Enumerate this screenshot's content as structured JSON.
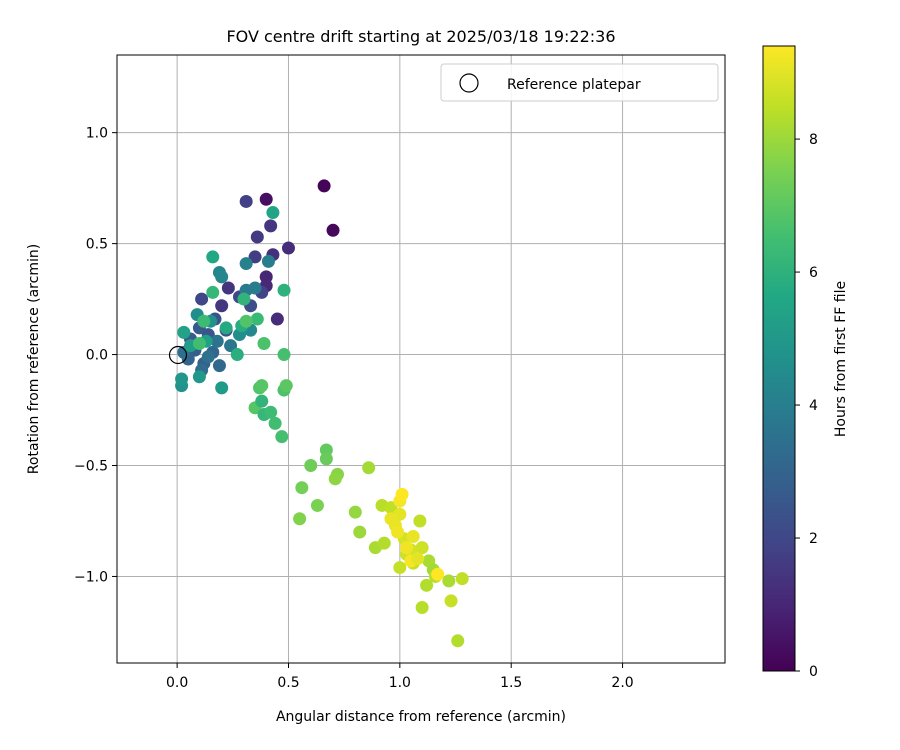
{
  "chart_data": {
    "type": "scatter",
    "title": "FOV centre drift starting at 2025/03/18 19:22:36",
    "xlabel": "Angular distance from reference (arcmin)",
    "ylabel": "Rotation from reference (arcmin)",
    "xlim": [
      -0.27,
      2.46
    ],
    "ylim": [
      -1.39,
      1.35
    ],
    "xticks": [
      0.0,
      0.5,
      1.0,
      1.5,
      2.0
    ],
    "xtick_labels": [
      "0.0",
      "0.5",
      "1.0",
      "1.5",
      "2.0"
    ],
    "yticks": [
      -1.0,
      -0.5,
      0.0,
      0.5,
      1.0
    ],
    "ytick_labels": [
      "−1.0",
      "−0.5",
      "0.0",
      "0.5",
      "1.0"
    ],
    "grid": true,
    "legend": {
      "placement": "top-right",
      "entries": [
        "Reference platepar"
      ]
    },
    "reference_point": {
      "x": 0.0,
      "y": 0.0,
      "style": "open-circle"
    },
    "colorbar": {
      "label": "Hours from first FF file",
      "range": [
        0,
        9.4
      ],
      "ticks": [
        0,
        2,
        4,
        6,
        8
      ],
      "tick_labels": [
        "0",
        "2",
        "4",
        "6",
        "8"
      ],
      "colormap": "viridis"
    },
    "points": [
      {
        "x": 0.66,
        "y": 0.76,
        "h": 0.1
      },
      {
        "x": 0.7,
        "y": 0.56,
        "h": 0.2
      },
      {
        "x": 0.4,
        "y": 0.7,
        "h": 0.4
      },
      {
        "x": 0.5,
        "y": 0.48,
        "h": 1.2
      },
      {
        "x": 0.43,
        "y": 0.45,
        "h": 1.3
      },
      {
        "x": 0.4,
        "y": 0.35,
        "h": 1.0
      },
      {
        "x": 0.42,
        "y": 0.58,
        "h": 1.5
      },
      {
        "x": 0.36,
        "y": 0.53,
        "h": 1.6
      },
      {
        "x": 0.31,
        "y": 0.69,
        "h": 1.8
      },
      {
        "x": 0.4,
        "y": 0.31,
        "h": 1.1
      },
      {
        "x": 0.45,
        "y": 0.16,
        "h": 1.2
      },
      {
        "x": 0.23,
        "y": 0.3,
        "h": 1.4
      },
      {
        "x": 0.35,
        "y": 0.44,
        "h": 1.7
      },
      {
        "x": 0.38,
        "y": 0.28,
        "h": 1.9
      },
      {
        "x": 0.2,
        "y": 0.22,
        "h": 1.5
      },
      {
        "x": 0.11,
        "y": 0.25,
        "h": 2.0
      },
      {
        "x": 0.28,
        "y": 0.26,
        "h": 2.1
      },
      {
        "x": 0.33,
        "y": 0.22,
        "h": 2.2
      },
      {
        "x": 0.22,
        "y": 0.11,
        "h": 2.3
      },
      {
        "x": 0.17,
        "y": 0.16,
        "h": 2.4
      },
      {
        "x": 0.14,
        "y": 0.09,
        "h": 2.5
      },
      {
        "x": 0.1,
        "y": 0.12,
        "h": 2.6
      },
      {
        "x": 0.06,
        "y": 0.07,
        "h": 2.7
      },
      {
        "x": 0.08,
        "y": 0.02,
        "h": 2.8
      },
      {
        "x": 0.12,
        "y": -0.04,
        "h": 2.9
      },
      {
        "x": 0.05,
        "y": -0.02,
        "h": 3.0
      },
      {
        "x": 0.16,
        "y": 0.01,
        "h": 3.1
      },
      {
        "x": 0.19,
        "y": -0.05,
        "h": 3.2
      },
      {
        "x": 0.11,
        "y": -0.07,
        "h": 3.3
      },
      {
        "x": 0.03,
        "y": 0.01,
        "h": 3.4
      },
      {
        "x": 0.14,
        "y": -0.01,
        "h": 3.5
      },
      {
        "x": 0.18,
        "y": 0.06,
        "h": 3.6
      },
      {
        "x": 0.24,
        "y": 0.04,
        "h": 3.7
      },
      {
        "x": 0.31,
        "y": 0.29,
        "h": 3.8
      },
      {
        "x": 0.35,
        "y": 0.3,
        "h": 3.9
      },
      {
        "x": 0.41,
        "y": 0.42,
        "h": 4.0
      },
      {
        "x": 0.31,
        "y": 0.41,
        "h": 4.1
      },
      {
        "x": 0.19,
        "y": 0.37,
        "h": 4.2
      },
      {
        "x": 0.2,
        "y": 0.35,
        "h": 4.3
      },
      {
        "x": 0.33,
        "y": 0.11,
        "h": 4.4
      },
      {
        "x": 0.28,
        "y": 0.09,
        "h": 4.5
      },
      {
        "x": 0.09,
        "y": 0.18,
        "h": 4.6
      },
      {
        "x": 0.15,
        "y": 0.15,
        "h": 4.7
      },
      {
        "x": 0.02,
        "y": -0.14,
        "h": 4.8
      },
      {
        "x": 0.02,
        "y": -0.11,
        "h": 4.9
      },
      {
        "x": 0.1,
        "y": -0.1,
        "h": 5.0
      },
      {
        "x": 0.2,
        "y": -0.15,
        "h": 5.1
      },
      {
        "x": 0.06,
        "y": 0.04,
        "h": 5.2
      },
      {
        "x": 0.13,
        "y": 0.06,
        "h": 5.3
      },
      {
        "x": 0.03,
        "y": 0.1,
        "h": 5.4
      },
      {
        "x": 0.43,
        "y": 0.64,
        "h": 5.5
      },
      {
        "x": 0.16,
        "y": 0.44,
        "h": 5.6
      },
      {
        "x": 0.22,
        "y": 0.12,
        "h": 5.7
      },
      {
        "x": 0.29,
        "y": 0.13,
        "h": 5.8
      },
      {
        "x": 0.27,
        "y": 0.0,
        "h": 5.9
      },
      {
        "x": 0.48,
        "y": 0.29,
        "h": 6.0
      },
      {
        "x": 0.3,
        "y": 0.25,
        "h": 6.1
      },
      {
        "x": 0.16,
        "y": 0.28,
        "h": 6.2
      },
      {
        "x": 0.36,
        "y": 0.16,
        "h": 6.3
      },
      {
        "x": 0.12,
        "y": 0.15,
        "h": 6.4
      },
      {
        "x": 0.1,
        "y": 0.05,
        "h": 6.5
      },
      {
        "x": 0.48,
        "y": 0.0,
        "h": 6.6
      },
      {
        "x": 0.39,
        "y": 0.05,
        "h": 6.7
      },
      {
        "x": 0.31,
        "y": 0.15,
        "h": 6.8
      },
      {
        "x": 0.35,
        "y": -0.24,
        "h": 6.9
      },
      {
        "x": 0.38,
        "y": -0.21,
        "h": 6.1
      },
      {
        "x": 0.39,
        "y": -0.27,
        "h": 6.2
      },
      {
        "x": 0.42,
        "y": -0.26,
        "h": 6.4
      },
      {
        "x": 0.44,
        "y": -0.31,
        "h": 6.5
      },
      {
        "x": 0.47,
        "y": -0.37,
        "h": 6.6
      },
      {
        "x": 0.48,
        "y": -0.16,
        "h": 6.7
      },
      {
        "x": 0.37,
        "y": -0.15,
        "h": 6.8
      },
      {
        "x": 0.38,
        "y": -0.14,
        "h": 6.9
      },
      {
        "x": 0.49,
        "y": -0.14,
        "h": 7.0
      },
      {
        "x": 0.67,
        "y": -0.43,
        "h": 7.1
      },
      {
        "x": 0.67,
        "y": -0.47,
        "h": 7.2
      },
      {
        "x": 0.6,
        "y": -0.5,
        "h": 7.3
      },
      {
        "x": 0.56,
        "y": -0.6,
        "h": 7.4
      },
      {
        "x": 0.63,
        "y": -0.68,
        "h": 7.5
      },
      {
        "x": 0.55,
        "y": -0.74,
        "h": 7.6
      },
      {
        "x": 0.72,
        "y": -0.54,
        "h": 7.7
      },
      {
        "x": 0.71,
        "y": -0.56,
        "h": 7.8
      },
      {
        "x": 0.8,
        "y": -0.71,
        "h": 7.9
      },
      {
        "x": 0.82,
        "y": -0.8,
        "h": 8.0
      },
      {
        "x": 0.86,
        "y": -0.51,
        "h": 8.1
      },
      {
        "x": 0.89,
        "y": -0.87,
        "h": 8.2
      },
      {
        "x": 0.93,
        "y": -0.85,
        "h": 8.3
      },
      {
        "x": 0.92,
        "y": -0.68,
        "h": 8.4
      },
      {
        "x": 0.96,
        "y": -0.69,
        "h": 8.5
      },
      {
        "x": 1.0,
        "y": -0.96,
        "h": 8.6
      },
      {
        "x": 1.03,
        "y": -0.9,
        "h": 8.7
      },
      {
        "x": 1.05,
        "y": -0.88,
        "h": 8.8
      },
      {
        "x": 1.06,
        "y": -0.94,
        "h": 8.6
      },
      {
        "x": 1.09,
        "y": -0.75,
        "h": 8.5
      },
      {
        "x": 1.1,
        "y": -0.87,
        "h": 8.7
      },
      {
        "x": 1.1,
        "y": -1.14,
        "h": 8.4
      },
      {
        "x": 1.12,
        "y": -1.04,
        "h": 8.3
      },
      {
        "x": 1.13,
        "y": -0.93,
        "h": 8.2
      },
      {
        "x": 1.15,
        "y": -0.97,
        "h": 8.1
      },
      {
        "x": 1.16,
        "y": -1.0,
        "h": 8.4
      },
      {
        "x": 1.22,
        "y": -1.02,
        "h": 8.2
      },
      {
        "x": 1.23,
        "y": -1.11,
        "h": 8.6
      },
      {
        "x": 1.26,
        "y": -1.29,
        "h": 8.3
      },
      {
        "x": 1.28,
        "y": -1.01,
        "h": 8.5
      },
      {
        "x": 1.02,
        "y": -0.83,
        "h": 8.8
      },
      {
        "x": 1.0,
        "y": -0.72,
        "h": 9.0
      },
      {
        "x": 0.98,
        "y": -0.77,
        "h": 9.1
      },
      {
        "x": 0.99,
        "y": -0.8,
        "h": 9.2
      },
      {
        "x": 1.0,
        "y": -0.66,
        "h": 9.3
      },
      {
        "x": 1.01,
        "y": -0.63,
        "h": 9.4
      },
      {
        "x": 1.03,
        "y": -0.87,
        "h": 9.2
      },
      {
        "x": 1.06,
        "y": -0.82,
        "h": 9.1
      },
      {
        "x": 1.05,
        "y": -0.93,
        "h": 9.3
      },
      {
        "x": 1.08,
        "y": -0.92,
        "h": 9.0
      },
      {
        "x": 1.17,
        "y": -0.99,
        "h": 9.4
      },
      {
        "x": 0.96,
        "y": -0.74,
        "h": 9.1
      }
    ]
  }
}
